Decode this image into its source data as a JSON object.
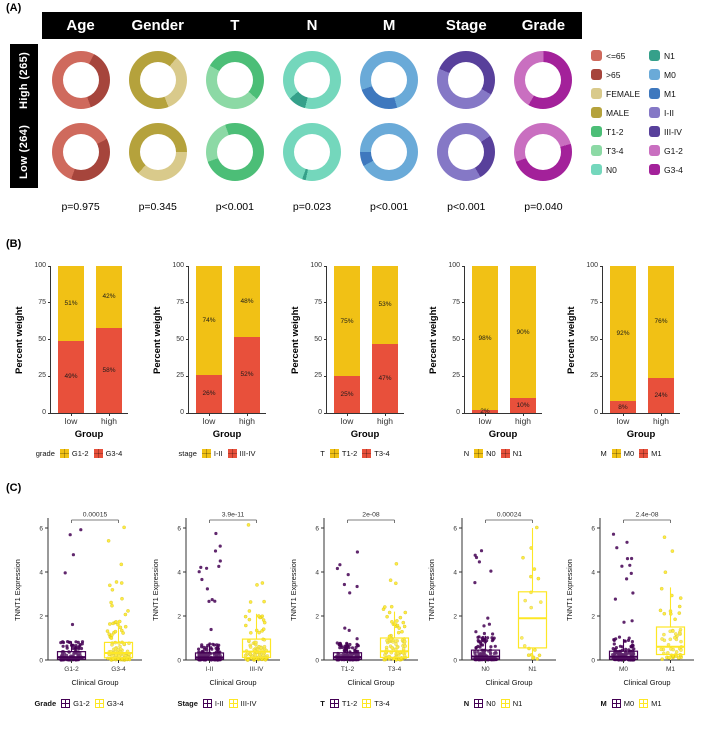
{
  "chart_data": {
    "panel_a": {
      "label": "(A)",
      "type": "pie",
      "headers": [
        "Age",
        "Gender",
        "T",
        "N",
        "M",
        "Stage",
        "Grade"
      ],
      "row_labels": [
        "High (265)",
        "Low (264)"
      ],
      "palette": {
        "<=65": "#CF6A5D",
        ">65": "#A6453C",
        "FEMALE": "#D9CA8B",
        "MALE": "#B5A23C",
        "T1-2": "#4CBE77",
        "T3-4": "#8CD9A5",
        "N0": "#74D7BC",
        "N1": "#35A08A",
        "M0": "#6AAAD8",
        "M1": "#3E78BE",
        "I-II": "#8578C6",
        "III-IV": "#58409B",
        "G1-2": "#C96FC0",
        "G3-4": "#A3219A"
      },
      "legend_columns": [
        [
          "<=65",
          ">65",
          "FEMALE",
          "MALE",
          "T1-2",
          "T3-4",
          "N0"
        ],
        [
          "N1",
          "M0",
          "M1",
          "I-II",
          "III-IV",
          "G1-2",
          "G3-4"
        ]
      ],
      "p_values": [
        "p=0.975",
        "p=0.345",
        "p<0.001",
        "p=0.023",
        "p<0.001",
        "p<0.001",
        "p=0.040"
      ],
      "rows": [
        {
          "row": "High",
          "donuts": [
            {
              "name": "Age",
              "rotate": 160,
              "segments": [
                [
                  "<=65",
                  63
                ],
                [
                  ">65",
                  37
                ]
              ]
            },
            {
              "name": "Gender",
              "rotate": 40,
              "segments": [
                [
                  "FEMALE",
                  33
                ],
                [
                  "MALE",
                  67
                ]
              ]
            },
            {
              "name": "T",
              "rotate": 300,
              "segments": [
                [
                  "T1-2",
                  53
                ],
                [
                  "T3-4",
                  47
                ]
              ]
            },
            {
              "name": "N",
              "rotate": 230,
              "segments": [
                [
                  "N0",
                  90
                ],
                [
                  "N1",
                  10
                ]
              ]
            },
            {
              "name": "M",
              "rotate": 250,
              "segments": [
                [
                  "M0",
                  76
                ],
                [
                  "M1",
                  24
                ]
              ]
            },
            {
              "name": "Stage",
              "rotate": 120,
              "segments": [
                [
                  "I-II",
                  48
                ],
                [
                  "III-IV",
                  52
                ]
              ]
            },
            {
              "name": "Grade",
              "rotate": 210,
              "segments": [
                [
                  "G1-2",
                  42
                ],
                [
                  "G3-4",
                  58
                ]
              ]
            }
          ]
        },
        {
          "row": "Low",
          "donuts": [
            {
              "name": "Age",
              "rotate": 200,
              "segments": [
                [
                  "<=65",
                  62
                ],
                [
                  ">65",
                  38
                ]
              ]
            },
            {
              "name": "Gender",
              "rotate": 90,
              "segments": [
                [
                  "FEMALE",
                  37
                ],
                [
                  "MALE",
                  63
                ]
              ]
            },
            {
              "name": "T",
              "rotate": 340,
              "segments": [
                [
                  "T1-2",
                  75
                ],
                [
                  "T3-4",
                  25
                ]
              ]
            },
            {
              "name": "N",
              "rotate": 200,
              "segments": [
                [
                  "N0",
                  98
                ],
                [
                  "N1",
                  2
                ]
              ]
            },
            {
              "name": "M",
              "rotate": 270,
              "segments": [
                [
                  "M0",
                  92
                ],
                [
                  "M1",
                  8
                ]
              ]
            },
            {
              "name": "Stage",
              "rotate": 150,
              "segments": [
                [
                  "I-II",
                  74
                ],
                [
                  "III-IV",
                  26
                ]
              ]
            },
            {
              "name": "Grade",
              "rotate": 250,
              "segments": [
                [
                  "G1-2",
                  51
                ],
                [
                  "G3-4",
                  49
                ]
              ]
            }
          ]
        }
      ]
    },
    "panel_b": {
      "label": "(B)",
      "type": "bar",
      "y_label": "Percent weight",
      "y_ticks": [
        0,
        25,
        50,
        75,
        100
      ],
      "ylim": [
        0,
        100
      ],
      "x_label": "Group",
      "x_categories": [
        "low",
        "high"
      ],
      "colors": {
        "first": "#F1C115",
        "second": "#E8503B"
      },
      "charts": [
        {
          "legend_title": "grade",
          "categories": [
            "G1-2",
            "G3-4"
          ],
          "bars": [
            {
              "group": "low",
              "first_pct": 51,
              "second_pct": 49
            },
            {
              "group": "high",
              "first_pct": 42,
              "second_pct": 58
            }
          ]
        },
        {
          "legend_title": "stage",
          "categories": [
            "I-II",
            "III-IV"
          ],
          "bars": [
            {
              "group": "low",
              "first_pct": 74,
              "second_pct": 26
            },
            {
              "group": "high",
              "first_pct": 48,
              "second_pct": 52
            }
          ]
        },
        {
          "legend_title": "T",
          "categories": [
            "T1-2",
            "T3-4"
          ],
          "bars": [
            {
              "group": "low",
              "first_pct": 75,
              "second_pct": 25
            },
            {
              "group": "high",
              "first_pct": 53,
              "second_pct": 47
            }
          ]
        },
        {
          "legend_title": "N",
          "categories": [
            "N0",
            "N1"
          ],
          "bars": [
            {
              "group": "low",
              "first_pct": 98,
              "second_pct": 2
            },
            {
              "group": "high",
              "first_pct": 90,
              "second_pct": 10
            }
          ]
        },
        {
          "legend_title": "M",
          "categories": [
            "M0",
            "M1"
          ],
          "bars": [
            {
              "group": "low",
              "first_pct": 92,
              "second_pct": 8
            },
            {
              "group": "high",
              "first_pct": 76,
              "second_pct": 24
            }
          ]
        }
      ]
    },
    "panel_c": {
      "label": "(C)",
      "type": "scatter",
      "y_label": "TNNT1 Expression",
      "y_ticks": [
        0,
        2,
        4,
        6
      ],
      "ylim": [
        0,
        6.35
      ],
      "x_label": "Clinical Group",
      "colors": {
        "group1": "#440154",
        "group2": "#FDE725"
      },
      "charts": [
        {
          "p_value": "0.00015",
          "legend_title": "Grade",
          "groups": [
            {
              "label": "G1-2",
              "n": 115,
              "q1": 0.04,
              "median": 0.13,
              "q3": 0.38,
              "whisker_low": 0,
              "whisker_high": 0.85,
              "max_point": 6.1
            },
            {
              "label": "G3-4",
              "n": 120,
              "q1": 0.1,
              "median": 0.32,
              "q3": 0.8,
              "whisker_low": 0,
              "whisker_high": 1.8,
              "max_point": 6.2
            }
          ]
        },
        {
          "p_value": "3.9e-11",
          "legend_title": "Stage",
          "groups": [
            {
              "label": "I-II",
              "n": 150,
              "q1": 0.04,
              "median": 0.12,
              "q3": 0.32,
              "whisker_low": 0,
              "whisker_high": 0.75,
              "max_point": 6.1
            },
            {
              "label": "III-IV",
              "n": 95,
              "q1": 0.12,
              "median": 0.38,
              "q3": 0.95,
              "whisker_low": 0,
              "whisker_high": 2.1,
              "max_point": 6.2
            }
          ]
        },
        {
          "p_value": "2e-08",
          "legend_title": "T",
          "groups": [
            {
              "label": "T1-2",
              "n": 150,
              "q1": 0.04,
              "median": 0.13,
              "q3": 0.33,
              "whisker_low": 0,
              "whisker_high": 0.78,
              "max_point": 6.1
            },
            {
              "label": "T3-4",
              "n": 95,
              "q1": 0.12,
              "median": 0.4,
              "q3": 1.0,
              "whisker_low": 0,
              "whisker_high": 2.2,
              "max_point": 6.2
            }
          ]
        },
        {
          "p_value": "0.00024",
          "legend_title": "N",
          "groups": [
            {
              "label": "N0",
              "n": 160,
              "q1": 0.05,
              "median": 0.16,
              "q3": 0.45,
              "whisker_low": 0,
              "whisker_high": 1.1,
              "max_point": 6.1
            },
            {
              "label": "N1",
              "n": 20,
              "q1": 0.55,
              "median": 1.9,
              "q3": 3.1,
              "whisker_low": 0.05,
              "whisker_high": 6.0,
              "max_point": 6.05
            }
          ]
        },
        {
          "p_value": "2.4e-08",
          "legend_title": "M",
          "groups": [
            {
              "label": "M0",
              "n": 160,
              "q1": 0.04,
              "median": 0.15,
              "q3": 0.4,
              "whisker_low": 0,
              "whisker_high": 0.95,
              "max_point": 6.1
            },
            {
              "label": "M1",
              "n": 55,
              "q1": 0.25,
              "median": 0.6,
              "q3": 1.5,
              "whisker_low": 0,
              "whisker_high": 3.3,
              "max_point": 6.2
            }
          ]
        }
      ]
    }
  }
}
